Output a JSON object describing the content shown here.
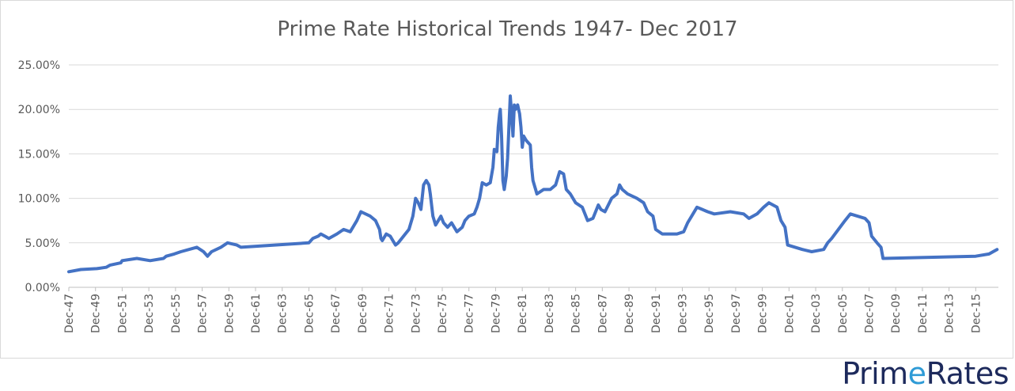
{
  "chart_data": {
    "type": "line",
    "title": "Prime Rate Historical Trends 1947- Dec 2017",
    "xlabel": "",
    "ylabel": "",
    "ylim": [
      0,
      25
    ],
    "y_ticks": [
      "0.00%",
      "5.00%",
      "10.00%",
      "15.00%",
      "20.00%",
      "25.00%"
    ],
    "x_ticks": [
      "Dec-47",
      "Dec-49",
      "Dec-51",
      "Dec-53",
      "Dec-55",
      "Dec-57",
      "Dec-59",
      "Dec-61",
      "Dec-63",
      "Dec-65",
      "Dec-67",
      "Dec-69",
      "Dec-71",
      "Dec-73",
      "Dec-75",
      "Dec-77",
      "Dec-79",
      "Dec-81",
      "Dec-83",
      "Dec-85",
      "Dec-87",
      "Dec-89",
      "Dec-91",
      "Dec-93",
      "Dec-95",
      "Dec-97",
      "Dec-99",
      "Dec-01",
      "Dec-03",
      "Dec-05",
      "Dec-07",
      "Dec-09",
      "Dec-11",
      "Dec-13",
      "Dec-15"
    ],
    "color": "#4472c4",
    "gridlines": true,
    "legend": "none",
    "x_unit": "years",
    "series": [
      {
        "points": [
          [
            1947.9,
            1.75
          ],
          [
            1948.8,
            2.0
          ],
          [
            1950.0,
            2.1
          ],
          [
            1950.7,
            2.25
          ],
          [
            1951.0,
            2.5
          ],
          [
            1951.8,
            2.75
          ],
          [
            1951.9,
            3.0
          ],
          [
            1953.0,
            3.25
          ],
          [
            1954.0,
            3.0
          ],
          [
            1955.0,
            3.25
          ],
          [
            1955.2,
            3.5
          ],
          [
            1955.8,
            3.75
          ],
          [
            1956.3,
            4.0
          ],
          [
            1957.5,
            4.5
          ],
          [
            1958.0,
            4.0
          ],
          [
            1958.3,
            3.5
          ],
          [
            1958.6,
            4.0
          ],
          [
            1959.3,
            4.5
          ],
          [
            1959.8,
            5.0
          ],
          [
            1960.5,
            4.75
          ],
          [
            1960.8,
            4.5
          ],
          [
            1965.9,
            5.0
          ],
          [
            1966.2,
            5.5
          ],
          [
            1966.6,
            5.75
          ],
          [
            1966.8,
            6.0
          ],
          [
            1967.1,
            5.75
          ],
          [
            1967.4,
            5.5
          ],
          [
            1968.0,
            6.0
          ],
          [
            1968.5,
            6.5
          ],
          [
            1969.0,
            6.25
          ],
          [
            1969.5,
            7.5
          ],
          [
            1969.8,
            8.5
          ],
          [
            1970.5,
            8.0
          ],
          [
            1970.9,
            7.5
          ],
          [
            1971.2,
            6.5
          ],
          [
            1971.3,
            5.5
          ],
          [
            1971.4,
            5.25
          ],
          [
            1971.7,
            6.0
          ],
          [
            1972.0,
            5.75
          ],
          [
            1972.2,
            5.25
          ],
          [
            1972.4,
            4.75
          ],
          [
            1972.6,
            5.0
          ],
          [
            1973.0,
            5.75
          ],
          [
            1973.4,
            6.5
          ],
          [
            1973.7,
            8.0
          ],
          [
            1973.9,
            10.0
          ],
          [
            1974.1,
            9.5
          ],
          [
            1974.3,
            8.75
          ],
          [
            1974.5,
            11.5
          ],
          [
            1974.7,
            12.0
          ],
          [
            1974.9,
            11.5
          ],
          [
            1975.0,
            10.5
          ],
          [
            1975.2,
            8.0
          ],
          [
            1975.4,
            7.0
          ],
          [
            1975.6,
            7.5
          ],
          [
            1975.8,
            8.0
          ],
          [
            1976.0,
            7.25
          ],
          [
            1976.3,
            6.75
          ],
          [
            1976.6,
            7.25
          ],
          [
            1977.0,
            6.25
          ],
          [
            1977.4,
            6.75
          ],
          [
            1977.6,
            7.5
          ],
          [
            1977.9,
            8.0
          ],
          [
            1978.3,
            8.25
          ],
          [
            1978.5,
            9.0
          ],
          [
            1978.7,
            10.0
          ],
          [
            1978.9,
            11.75
          ],
          [
            1979.2,
            11.5
          ],
          [
            1979.5,
            11.75
          ],
          [
            1979.7,
            13.5
          ],
          [
            1979.8,
            15.5
          ],
          [
            1980.0,
            15.25
          ],
          [
            1980.1,
            18.0
          ],
          [
            1980.2,
            19.5
          ],
          [
            1980.25,
            20.0
          ],
          [
            1980.35,
            17.0
          ],
          [
            1980.45,
            12.0
          ],
          [
            1980.55,
            11.0
          ],
          [
            1980.7,
            12.5
          ],
          [
            1980.8,
            14.5
          ],
          [
            1980.9,
            18.0
          ],
          [
            1981.0,
            21.5
          ],
          [
            1981.1,
            19.5
          ],
          [
            1981.2,
            17.0
          ],
          [
            1981.3,
            20.5
          ],
          [
            1981.4,
            20.0
          ],
          [
            1981.55,
            20.5
          ],
          [
            1981.7,
            19.5
          ],
          [
            1981.8,
            18.0
          ],
          [
            1981.9,
            15.75
          ],
          [
            1982.0,
            17.0
          ],
          [
            1982.2,
            16.5
          ],
          [
            1982.5,
            16.0
          ],
          [
            1982.6,
            13.5
          ],
          [
            1982.7,
            12.0
          ],
          [
            1983.0,
            10.5
          ],
          [
            1983.5,
            11.0
          ],
          [
            1984.0,
            11.0
          ],
          [
            1984.4,
            11.5
          ],
          [
            1984.6,
            12.5
          ],
          [
            1984.7,
            13.0
          ],
          [
            1985.0,
            12.75
          ],
          [
            1985.2,
            11.0
          ],
          [
            1985.5,
            10.5
          ],
          [
            1985.9,
            9.5
          ],
          [
            1986.4,
            9.0
          ],
          [
            1986.8,
            7.5
          ],
          [
            1987.2,
            7.75
          ],
          [
            1987.6,
            9.25
          ],
          [
            1987.8,
            8.75
          ],
          [
            1988.1,
            8.5
          ],
          [
            1988.6,
            10.0
          ],
          [
            1989.0,
            10.5
          ],
          [
            1989.2,
            11.5
          ],
          [
            1989.4,
            11.0
          ],
          [
            1989.8,
            10.5
          ],
          [
            1990.5,
            10.0
          ],
          [
            1991.0,
            9.5
          ],
          [
            1991.3,
            8.5
          ],
          [
            1991.7,
            8.0
          ],
          [
            1991.9,
            6.5
          ],
          [
            1992.4,
            6.0
          ],
          [
            1993.5,
            6.0
          ],
          [
            1994.0,
            6.25
          ],
          [
            1994.3,
            7.25
          ],
          [
            1994.6,
            8.0
          ],
          [
            1995.0,
            9.0
          ],
          [
            1995.8,
            8.5
          ],
          [
            1996.3,
            8.25
          ],
          [
            1997.5,
            8.5
          ],
          [
            1998.5,
            8.25
          ],
          [
            1998.9,
            7.75
          ],
          [
            1999.5,
            8.25
          ],
          [
            2000.0,
            9.0
          ],
          [
            2000.4,
            9.5
          ],
          [
            2001.0,
            9.0
          ],
          [
            2001.3,
            7.5
          ],
          [
            2001.6,
            6.75
          ],
          [
            2001.8,
            4.75
          ],
          [
            2002.9,
            4.25
          ],
          [
            2003.6,
            4.0
          ],
          [
            2004.5,
            4.25
          ],
          [
            2004.8,
            5.0
          ],
          [
            2005.1,
            5.5
          ],
          [
            2005.6,
            6.5
          ],
          [
            2006.1,
            7.5
          ],
          [
            2006.5,
            8.25
          ],
          [
            2007.6,
            7.75
          ],
          [
            2007.9,
            7.25
          ],
          [
            2008.1,
            5.75
          ],
          [
            2008.5,
            5.0
          ],
          [
            2008.8,
            4.5
          ],
          [
            2008.95,
            3.25
          ],
          [
            2015.9,
            3.5
          ],
          [
            2016.9,
            3.75
          ],
          [
            2017.2,
            4.0
          ],
          [
            2017.5,
            4.25
          ]
        ]
      }
    ]
  },
  "logo": {
    "text_before": "Prim",
    "text_check": "e",
    "text_after": "Rates"
  }
}
